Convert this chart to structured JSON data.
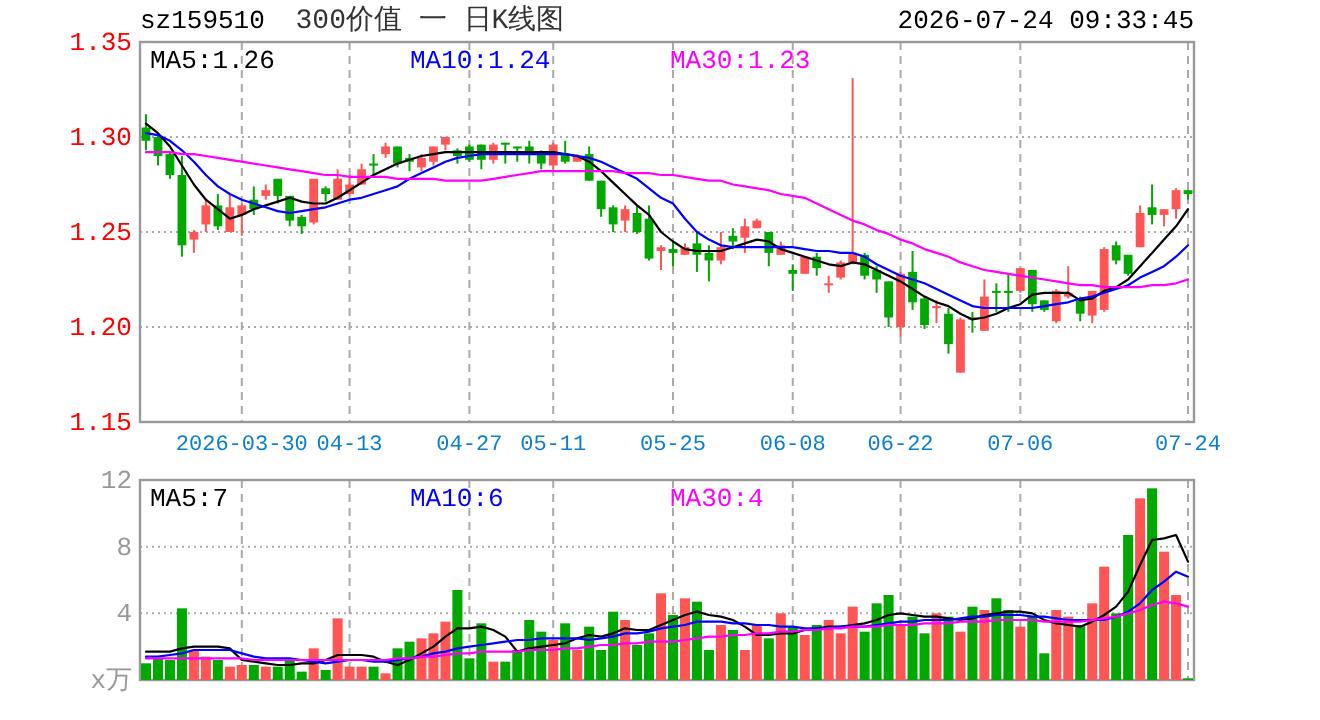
{
  "chart_data": [
    {
      "type": "candlestick",
      "title": "300价值 一 日K线图",
      "subtitle": "sz159510",
      "annotations": [
        "2026-07-24 09:33:45"
      ],
      "categories": [
        null,
        null,
        null,
        null,
        null,
        null,
        null,
        null,
        "2026-03-30",
        null,
        null,
        null,
        null,
        null,
        null,
        null,
        null,
        "04-13",
        null,
        null,
        null,
        null,
        null,
        null,
        null,
        null,
        null,
        "04-27",
        null,
        null,
        null,
        null,
        null,
        null,
        "05-11",
        null,
        null,
        null,
        null,
        null,
        null,
        null,
        null,
        null,
        "05-25",
        null,
        null,
        null,
        null,
        null,
        null,
        null,
        null,
        null,
        "06-08",
        null,
        null,
        null,
        null,
        null,
        null,
        null,
        null,
        "06-22",
        null,
        null,
        null,
        null,
        null,
        null,
        null,
        null,
        null,
        "07-06",
        null,
        null,
        null,
        null,
        null,
        null,
        null,
        null,
        null,
        null,
        null,
        null,
        null,
        "07-24"
      ],
      "ylim": [
        1.15,
        1.35
      ],
      "yticks": [
        1.15,
        {
          "value": 1.2,
          "label": "1.20"
        },
        1.25,
        {
          "value": 1.3,
          "label": "1.30"
        },
        1.35
      ],
      "grid": true,
      "legend": "top left",
      "series": [
        {
          "colors": [
            "#00a800",
            "#00a800",
            "#00a800",
            "#00a800",
            "#ff5555",
            "#ff5555",
            "#00a800",
            "#ff5555",
            "#ff5555",
            "#00a800",
            "#ff5555",
            "#00a800",
            "#00a800",
            "#00a800",
            "#ff5555",
            "#00a800",
            "#ff5555",
            "#ff5555",
            "#ff5555",
            "#00a800",
            "#ff5555",
            "#00a800",
            "#00a800",
            "#ff5555",
            "#ff5555",
            "#ff5555",
            "#00a800",
            "#00a800",
            "#00a800",
            "#ff5555",
            "#00a800",
            "#00a800",
            "#00a800",
            "#00a800",
            "#ff5555",
            "#00a800",
            "#ff5555",
            "#00a800",
            "#00a800",
            "#00a800",
            "#ff5555",
            "#00a800",
            "#00a800",
            "#ff5555",
            "#00a800",
            "#ff5555",
            "#00a800",
            "#00a800",
            "#ff5555",
            "#00a800",
            "#ff5555",
            "#ff5555",
            "#00a800",
            "#ff5555",
            "#00a800",
            "#ff5555",
            "#00a800",
            "#ff5555",
            "#ff5555",
            "#ff5555",
            "#00a800",
            "#00a800",
            "#00a800",
            "#ff5555",
            "#00a800",
            "#00a800",
            "#ff5555",
            "#00a800",
            "#ff5555",
            "#00a800",
            "#ff5555",
            "#00a800",
            "#00a800",
            "#ff5555",
            "#00a800",
            "#00a800",
            "#ff5555",
            "#ff5555",
            "#00a800",
            "#ff5555",
            "#ff5555",
            "#00a800",
            "#00a800",
            "#ff5555",
            "#00a800",
            "#ff5555",
            "#ff5555",
            "#00a800"
          ],
          "ohlc": [
            [
              1.305,
              1.312,
              1.293,
              1.298
            ],
            [
              1.3,
              1.301,
              1.285,
              1.29
            ],
            [
              1.291,
              1.292,
              1.278,
              1.28
            ],
            [
              1.28,
              1.29,
              1.237,
              1.243
            ],
            [
              1.246,
              1.251,
              1.239,
              1.25
            ],
            [
              1.254,
              1.267,
              1.25,
              1.264
            ],
            [
              1.264,
              1.27,
              1.251,
              1.253
            ],
            [
              1.25,
              1.27,
              1.25,
              1.263
            ],
            [
              1.259,
              1.265,
              1.248,
              1.264
            ],
            [
              1.267,
              1.274,
              1.259,
              1.262
            ],
            [
              1.269,
              1.275,
              1.267,
              1.272
            ],
            [
              1.278,
              1.278,
              1.265,
              1.269
            ],
            [
              1.269,
              1.269,
              1.253,
              1.256
            ],
            [
              1.258,
              1.259,
              1.249,
              1.253
            ],
            [
              1.255,
              1.278,
              1.254,
              1.278
            ],
            [
              1.273,
              1.274,
              1.266,
              1.27
            ],
            [
              1.267,
              1.283,
              1.267,
              1.278
            ],
            [
              1.27,
              1.28,
              1.269,
              1.275
            ],
            [
              1.275,
              1.286,
              1.275,
              1.283
            ],
            [
              1.286,
              1.291,
              1.28,
              1.285
            ],
            [
              1.291,
              1.297,
              1.289,
              1.295
            ],
            [
              1.295,
              1.295,
              1.284,
              1.286
            ],
            [
              1.289,
              1.291,
              1.282,
              1.287
            ],
            [
              1.284,
              1.291,
              1.282,
              1.289
            ],
            [
              1.287,
              1.295,
              1.285,
              1.295
            ],
            [
              1.296,
              1.3,
              1.293,
              1.3
            ],
            [
              1.293,
              1.294,
              1.286,
              1.29
            ],
            [
              1.295,
              1.296,
              1.287,
              1.288
            ],
            [
              1.296,
              1.296,
              1.283,
              1.288
            ],
            [
              1.288,
              1.297,
              1.286,
              1.296
            ],
            [
              1.297,
              1.297,
              1.286,
              1.296
            ],
            [
              1.295,
              1.295,
              1.287,
              1.294
            ],
            [
              1.295,
              1.298,
              1.286,
              1.291
            ],
            [
              1.291,
              1.293,
              1.283,
              1.286
            ],
            [
              1.285,
              1.297,
              1.283,
              1.296
            ],
            [
              1.291,
              1.298,
              1.286,
              1.287
            ],
            [
              1.287,
              1.291,
              1.287,
              1.29
            ],
            [
              1.291,
              1.295,
              1.277,
              1.277
            ],
            [
              1.277,
              1.277,
              1.258,
              1.262
            ],
            [
              1.263,
              1.264,
              1.25,
              1.254
            ],
            [
              1.256,
              1.264,
              1.25,
              1.262
            ],
            [
              1.26,
              1.264,
              1.249,
              1.25
            ],
            [
              1.257,
              1.264,
              1.235,
              1.236
            ],
            [
              1.24,
              1.243,
              1.23,
              1.242
            ],
            [
              1.241,
              1.245,
              1.232,
              1.239
            ],
            [
              1.238,
              1.244,
              1.238,
              1.242
            ],
            [
              1.244,
              1.25,
              1.229,
              1.238
            ],
            [
              1.239,
              1.243,
              1.224,
              1.235
            ],
            [
              1.235,
              1.25,
              1.233,
              1.242
            ],
            [
              1.248,
              1.252,
              1.241,
              1.245
            ],
            [
              1.247,
              1.257,
              1.239,
              1.253
            ],
            [
              1.252,
              1.257,
              1.252,
              1.256
            ],
            [
              1.25,
              1.25,
              1.232,
              1.239
            ],
            [
              1.238,
              1.245,
              1.238,
              1.243
            ],
            [
              1.23,
              1.233,
              1.219,
              1.228
            ],
            [
              1.228,
              1.237,
              1.228,
              1.237
            ],
            [
              1.237,
              1.239,
              1.227,
              1.231
            ],
            [
              1.222,
              1.227,
              1.218,
              1.223
            ],
            [
              1.226,
              1.235,
              1.225,
              1.234
            ],
            [
              1.234,
              1.331,
              1.233,
              1.239
            ],
            [
              1.238,
              1.239,
              1.225,
              1.227
            ],
            [
              1.23,
              1.232,
              1.218,
              1.225
            ],
            [
              1.224,
              1.224,
              1.2,
              1.205
            ],
            [
              1.2,
              1.229,
              1.195,
              1.228
            ],
            [
              1.229,
              1.24,
              1.209,
              1.213
            ],
            [
              1.215,
              1.216,
              1.199,
              1.201
            ],
            [
              1.21,
              1.214,
              1.202,
              1.211
            ],
            [
              1.207,
              1.21,
              1.186,
              1.191
            ],
            [
              1.176,
              1.205,
              1.176,
              1.204
            ],
            [
              1.205,
              1.208,
              1.197,
              1.204
            ],
            [
              1.198,
              1.225,
              1.198,
              1.216
            ],
            [
              1.219,
              1.223,
              1.208,
              1.218
            ],
            [
              1.219,
              1.228,
              1.208,
              1.218
            ],
            [
              1.219,
              1.231,
              1.218,
              1.231
            ],
            [
              1.23,
              1.23,
              1.208,
              1.212
            ],
            [
              1.214,
              1.214,
              1.208,
              1.209
            ],
            [
              1.203,
              1.22,
              1.202,
              1.219
            ],
            [
              1.216,
              1.232,
              1.215,
              1.218
            ],
            [
              1.214,
              1.216,
              1.203,
              1.207
            ],
            [
              1.206,
              1.219,
              1.202,
              1.219
            ],
            [
              1.209,
              1.242,
              1.208,
              1.241
            ],
            [
              1.243,
              1.245,
              1.233,
              1.235
            ],
            [
              1.238,
              1.238,
              1.227,
              1.228
            ],
            [
              1.242,
              1.264,
              1.242,
              1.26
            ],
            [
              1.263,
              1.275,
              1.254,
              1.259
            ],
            [
              1.259,
              1.262,
              1.253,
              1.262
            ],
            [
              1.262,
              1.273,
              1.257,
              1.272
            ],
            [
              1.272,
              1.272,
              1.267,
              1.27
            ]
          ]
        },
        {
          "type": "line",
          "name": "MA5:1.26",
          "color": "#000000",
          "values": [
            1.307,
            1.302,
            1.295,
            1.285,
            1.275,
            1.267,
            1.262,
            1.257,
            1.259,
            1.262,
            1.264,
            1.266,
            1.268,
            1.266,
            1.265,
            1.265,
            1.268,
            1.272,
            1.276,
            1.28,
            1.283,
            1.286,
            1.288,
            1.29,
            1.291,
            1.292,
            1.292,
            1.292,
            1.292,
            1.292,
            1.292,
            1.292,
            1.292,
            1.292,
            1.292,
            1.291,
            1.29,
            1.287,
            1.282,
            1.276,
            1.27,
            1.264,
            1.259,
            1.25,
            1.245,
            1.241,
            1.24,
            1.24,
            1.24,
            1.242,
            1.244,
            1.246,
            1.245,
            1.241,
            1.239,
            1.237,
            1.235,
            1.233,
            1.232,
            1.234,
            1.233,
            1.23,
            1.227,
            1.224,
            1.22,
            1.216,
            1.213,
            1.211,
            1.207,
            1.204,
            1.205,
            1.207,
            1.21,
            1.212,
            1.217,
            1.218,
            1.218,
            1.218,
            1.214,
            1.215,
            1.219,
            1.221,
            1.225,
            1.232,
            1.239,
            1.246,
            1.253,
            1.262
          ]
        },
        {
          "type": "line",
          "name": "MA10:1.24",
          "color": "#0000ff",
          "values": [
            1.302,
            1.301,
            1.298,
            1.293,
            1.287,
            1.28,
            1.274,
            1.27,
            1.267,
            1.265,
            1.263,
            1.261,
            1.26,
            1.261,
            1.262,
            1.263,
            1.265,
            1.267,
            1.268,
            1.27,
            1.272,
            1.274,
            1.278,
            1.281,
            1.284,
            1.287,
            1.289,
            1.29,
            1.291,
            1.291,
            1.291,
            1.291,
            1.291,
            1.291,
            1.291,
            1.291,
            1.29,
            1.289,
            1.287,
            1.284,
            1.281,
            1.278,
            1.273,
            1.268,
            1.265,
            1.257,
            1.25,
            1.246,
            1.243,
            1.242,
            1.242,
            1.242,
            1.242,
            1.242,
            1.242,
            1.241,
            1.24,
            1.24,
            1.239,
            1.239,
            1.237,
            1.233,
            1.23,
            1.227,
            1.225,
            1.223,
            1.22,
            1.217,
            1.214,
            1.211,
            1.21,
            1.21,
            1.21,
            1.21,
            1.21,
            1.211,
            1.212,
            1.213,
            1.215,
            1.216,
            1.218,
            1.22,
            1.222,
            1.226,
            1.229,
            1.232,
            1.237,
            1.243
          ]
        },
        {
          "type": "line",
          "name": "MA30:1.23",
          "color": "#ff00ff",
          "values": [
            1.292,
            1.292,
            1.292,
            1.291,
            1.291,
            1.29,
            1.289,
            1.288,
            1.287,
            1.286,
            1.285,
            1.284,
            1.283,
            1.282,
            1.281,
            1.28,
            1.28,
            1.279,
            1.279,
            1.279,
            1.279,
            1.278,
            1.278,
            1.278,
            1.278,
            1.277,
            1.277,
            1.277,
            1.277,
            1.278,
            1.279,
            1.28,
            1.281,
            1.282,
            1.282,
            1.282,
            1.282,
            1.282,
            1.282,
            1.282,
            1.281,
            1.281,
            1.281,
            1.28,
            1.28,
            1.279,
            1.278,
            1.277,
            1.277,
            1.275,
            1.274,
            1.273,
            1.272,
            1.27,
            1.269,
            1.268,
            1.265,
            1.262,
            1.259,
            1.256,
            1.254,
            1.251,
            1.249,
            1.246,
            1.244,
            1.241,
            1.239,
            1.237,
            1.234,
            1.232,
            1.23,
            1.229,
            1.228,
            1.227,
            1.226,
            1.225,
            1.224,
            1.223,
            1.222,
            1.222,
            1.221,
            1.221,
            1.221,
            1.221,
            1.222,
            1.222,
            1.223,
            1.225
          ]
        }
      ]
    },
    {
      "type": "bar",
      "tick_labels": "y",
      "grid": true,
      "legend": "top left",
      "categories": [
        null,
        null,
        null,
        null,
        null,
        null,
        null,
        null,
        null,
        null,
        null,
        null,
        null,
        null,
        null,
        null,
        null,
        null,
        null,
        null,
        null,
        null,
        null,
        null,
        null,
        null,
        null,
        null,
        null,
        null,
        null,
        null,
        null,
        null,
        null,
        null,
        null,
        null,
        null,
        null,
        null,
        null,
        null,
        null,
        null,
        null,
        null,
        null,
        null,
        null,
        null,
        null,
        null,
        null,
        null,
        null,
        null,
        null,
        null,
        null,
        null,
        null,
        null,
        null,
        null,
        null,
        null,
        null,
        null,
        null,
        null,
        null,
        null,
        null,
        null,
        null,
        null,
        null,
        null,
        null,
        null,
        null,
        null,
        null,
        null,
        null,
        null,
        null
      ],
      "ylim": [
        0,
        12
      ],
      "yticks": [
        {
          "value": 0,
          "label": "x万"
        },
        4,
        8,
        12
      ],
      "series": [
        {
          "colors": [
            "#00a800",
            "#00a800",
            "#00a800",
            "#00a800",
            "#ff5555",
            "#ff5555",
            "#00a800",
            "#ff5555",
            "#ff5555",
            "#00a800",
            "#ff5555",
            "#00a800",
            "#00a800",
            "#00a800",
            "#ff5555",
            "#00a800",
            "#ff5555",
            "#ff5555",
            "#ff5555",
            "#00a800",
            "#ff5555",
            "#00a800",
            "#00a800",
            "#ff5555",
            "#ff5555",
            "#ff5555",
            "#00a800",
            "#00a800",
            "#00a800",
            "#ff5555",
            "#00a800",
            "#00a800",
            "#00a800",
            "#00a800",
            "#ff5555",
            "#00a800",
            "#ff5555",
            "#00a800",
            "#00a800",
            "#00a800",
            "#ff5555",
            "#00a800",
            "#00a800",
            "#ff5555",
            "#00a800",
            "#ff5555",
            "#00a800",
            "#00a800",
            "#ff5555",
            "#00a800",
            "#ff5555",
            "#ff5555",
            "#00a800",
            "#ff5555",
            "#00a800",
            "#ff5555",
            "#00a800",
            "#ff5555",
            "#ff5555",
            "#ff5555",
            "#00a800",
            "#00a800",
            "#00a800",
            "#ff5555",
            "#00a800",
            "#00a800",
            "#ff5555",
            "#00a800",
            "#ff5555",
            "#00a800",
            "#ff5555",
            "#00a800",
            "#00a800",
            "#ff5555",
            "#00a800",
            "#00a800",
            "#ff5555",
            "#ff5555",
            "#00a800",
            "#ff5555",
            "#ff5555",
            "#00a800",
            "#00a800",
            "#ff5555",
            "#00a800",
            "#ff5555",
            "#ff5555",
            "#00a800"
          ],
          "values": [
            1.0,
            1.3,
            1.2,
            4.3,
            1.8,
            1.4,
            1.2,
            0.8,
            0.9,
            0.9,
            0.8,
            0.8,
            1.2,
            0.5,
            1.9,
            0.6,
            3.7,
            0.8,
            0.8,
            0.8,
            0.4,
            1.9,
            2.3,
            2.5,
            2.8,
            3.5,
            5.4,
            1.3,
            3.4,
            1.1,
            1.1,
            1.8,
            3.6,
            2.9,
            2.4,
            3.4,
            1.8,
            3.2,
            1.8,
            4.1,
            3.6,
            2.1,
            2.8,
            5.2,
            3.9,
            4.9,
            4.7,
            1.8,
            3.3,
            3.0,
            1.8,
            3.3,
            2.5,
            4.0,
            3.2,
            2.7,
            3.3,
            3.6,
            2.8,
            4.4,
            2.9,
            4.6,
            5.1,
            3.3,
            3.8,
            2.8,
            4.0,
            3.8,
            2.9,
            4.4,
            4.2,
            4.9,
            4.2,
            3.2,
            3.8,
            1.6,
            4.2,
            3.8,
            3.3,
            4.6,
            6.8,
            4.0,
            8.7,
            10.9,
            11.5,
            7.7,
            5.1,
            0.1
          ]
        },
        {
          "type": "line",
          "name": "MA5:7",
          "color": "#000000",
          "values": [
            1.7,
            1.7,
            1.7,
            1.9,
            2.0,
            2.0,
            2.0,
            1.9,
            1.2,
            1.1,
            1.0,
            0.9,
            0.9,
            1.0,
            1.0,
            1.2,
            1.5,
            1.5,
            1.5,
            1.4,
            1.1,
            0.9,
            1.2,
            1.6,
            2.0,
            2.6,
            3.1,
            3.1,
            3.2,
            3.0,
            2.6,
            1.7,
            1.9,
            2.0,
            2.1,
            2.2,
            2.5,
            2.7,
            2.6,
            2.8,
            3.1,
            3.0,
            3.0,
            3.3,
            3.6,
            3.9,
            4.1,
            3.9,
            3.8,
            3.6,
            3.2,
            2.7,
            2.7,
            2.8,
            2.8,
            3.0,
            3.1,
            3.2,
            3.2,
            3.3,
            3.4,
            3.6,
            3.9,
            4.0,
            3.9,
            3.8,
            3.8,
            3.7,
            3.6,
            3.7,
            3.9,
            4.0,
            4.1,
            4.1,
            4.0,
            3.6,
            3.4,
            3.3,
            3.2,
            3.5,
            3.9,
            4.4,
            5.3,
            6.9,
            8.4,
            8.5,
            8.7,
            7.1
          ]
        },
        {
          "type": "line",
          "name": "MA10:6",
          "color": "#0000ff",
          "values": [
            1.4,
            1.4,
            1.5,
            1.6,
            1.8,
            1.8,
            1.8,
            1.8,
            1.6,
            1.4,
            1.3,
            1.3,
            1.3,
            1.2,
            1.1,
            1.0,
            1.1,
            1.2,
            1.2,
            1.1,
            1.1,
            1.2,
            1.3,
            1.4,
            1.6,
            1.7,
            1.9,
            2.0,
            2.1,
            2.2,
            2.3,
            2.4,
            2.4,
            2.5,
            2.5,
            2.5,
            2.5,
            2.4,
            2.5,
            2.6,
            2.8,
            2.8,
            2.9,
            3.1,
            3.2,
            3.3,
            3.5,
            3.5,
            3.5,
            3.4,
            3.4,
            3.3,
            3.3,
            3.2,
            3.2,
            3.1,
            3.1,
            3.1,
            3.2,
            3.2,
            3.2,
            3.3,
            3.4,
            3.5,
            3.5,
            3.6,
            3.6,
            3.6,
            3.7,
            3.8,
            3.8,
            3.9,
            3.9,
            3.9,
            3.8,
            3.8,
            3.7,
            3.6,
            3.6,
            3.6,
            3.6,
            3.8,
            4.1,
            4.6,
            5.4,
            5.9,
            6.5,
            6.2
          ]
        },
        {
          "type": "line",
          "name": "MA30:4",
          "color": "#ff00ff",
          "values": [
            1.3,
            1.3,
            1.3,
            1.3,
            1.3,
            1.3,
            1.3,
            1.3,
            1.3,
            1.2,
            1.2,
            1.2,
            1.2,
            1.2,
            1.2,
            1.2,
            1.2,
            1.2,
            1.2,
            1.2,
            1.2,
            1.3,
            1.3,
            1.4,
            1.4,
            1.5,
            1.6,
            1.6,
            1.7,
            1.7,
            1.7,
            1.7,
            1.8,
            1.8,
            1.8,
            1.9,
            1.9,
            2.0,
            2.1,
            2.1,
            2.2,
            2.2,
            2.3,
            2.3,
            2.3,
            2.4,
            2.5,
            2.6,
            2.6,
            2.7,
            2.7,
            2.8,
            2.8,
            2.9,
            2.9,
            3.0,
            3.0,
            3.1,
            3.1,
            3.2,
            3.2,
            3.2,
            3.3,
            3.3,
            3.3,
            3.4,
            3.4,
            3.4,
            3.5,
            3.5,
            3.5,
            3.6,
            3.6,
            3.6,
            3.6,
            3.5,
            3.5,
            3.5,
            3.5,
            3.6,
            3.7,
            3.8,
            4.0,
            4.2,
            4.5,
            4.7,
            4.6,
            4.4
          ]
        }
      ]
    }
  ]
}
